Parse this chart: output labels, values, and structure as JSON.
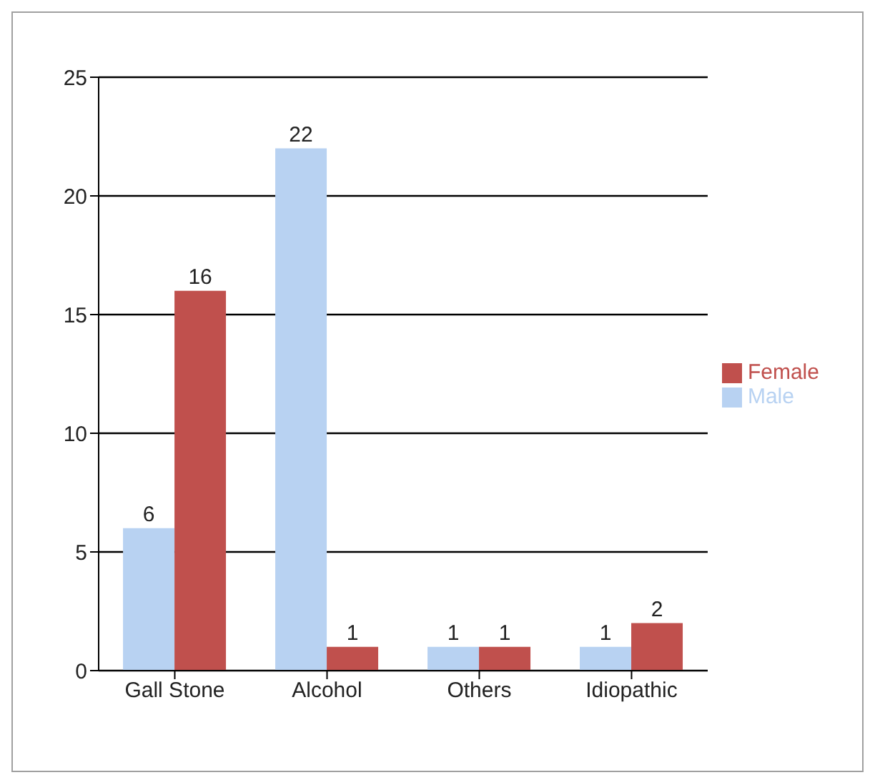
{
  "chart_data": {
    "type": "bar",
    "categories": [
      "Gall Stone",
      "Alcohol",
      "Others",
      "Idiopathic"
    ],
    "series": [
      {
        "name": "Male",
        "color": "#b8d2f2",
        "values": [
          6,
          22,
          1,
          1
        ]
      },
      {
        "name": "Female",
        "color": "#c0504d",
        "values": [
          16,
          1,
          1,
          2
        ]
      }
    ],
    "ylim": [
      0,
      25
    ],
    "yticks": [
      0,
      5,
      10,
      15,
      20,
      25
    ],
    "grid": "y",
    "legend": "right",
    "data_labels": true
  }
}
